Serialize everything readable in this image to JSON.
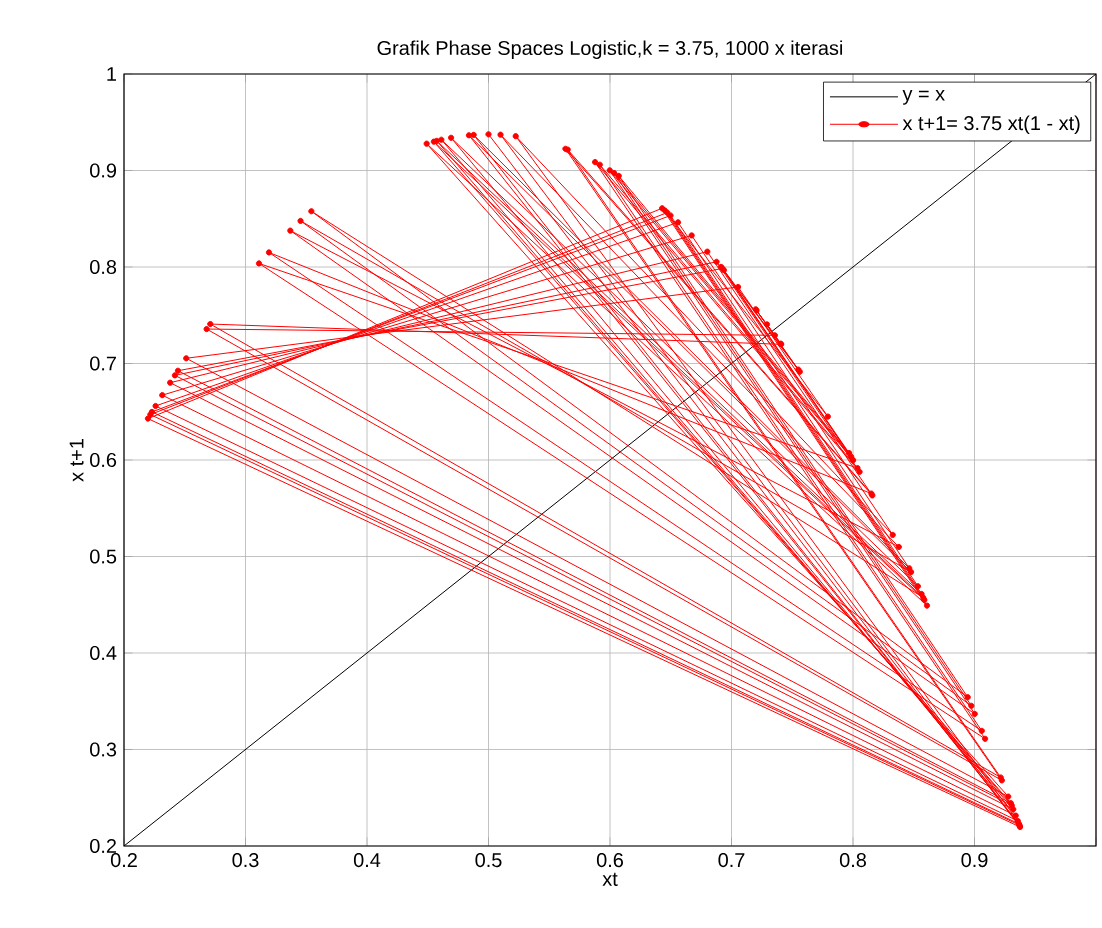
{
  "chart_data": {
    "type": "line",
    "title": "Grafik Phase Spaces Logistic,k = 3.75,  1000 x iterasi",
    "xlabel": "xt",
    "ylabel": "x t+1",
    "xlim": [
      0.2,
      1
    ],
    "ylim": [
      0.2,
      1
    ],
    "xticks": [
      0.2,
      0.3,
      0.4,
      0.5,
      0.6,
      0.7,
      0.8,
      0.9,
      {
        "value": 1,
        "label": null
      }
    ],
    "yticks": [
      0.2,
      0.3,
      0.4,
      0.5,
      0.6,
      0.7,
      0.8,
      0.9,
      1
    ],
    "grid": true,
    "legend": "top right",
    "series": [
      {
        "name": "y = x",
        "color": "#000000",
        "marker": "none",
        "x": [
          0.2,
          1
        ],
        "values": [
          0.2,
          1
        ]
      },
      {
        "name": "x t+1= 3.75 xt(1 - xt)",
        "color": "#ff0000",
        "marker": "circle",
        "x": [
          0.5,
          0.9375,
          0.2197,
          0.6429,
          0.8609,
          0.4491,
          0.9278,
          0.2512,
          0.7054,
          0.7793,
          0.645,
          0.8587,
          0.455,
          0.9299,
          0.2444,
          0.6925,
          0.7985,
          0.6034,
          0.8974,
          0.3453,
          0.8478,
          0.4839,
          0.9365,
          0.223,
          0.6498,
          0.8534,
          0.4692,
          0.9339,
          0.2315,
          0.6672,
          0.8327,
          0.5224,
          0.9356,
          0.226,
          0.656,
          0.8463,
          0.4878,
          0.9369,
          0.2217,
          0.6471,
          0.8564,
          0.4612,
          0.9319,
          0.238,
          0.6801,
          0.8159,
          0.5633,
          0.9225,
          0.268,
          0.7357,
          0.7292,
          0.7405,
          0.7206,
          0.755,
          0.6937,
          0.7968,
          0.6072,
          0.8944,
          0.3542,
          0.8578,
          0.4574,
          0.9307,
          0.2419,
          0.6877,
          0.8054,
          0.5877,
          0.9087,
          0.3111,
          0.8037,
          0.5916,
          0.906,
          0.3193,
          0.8151,
          0.5652,
          0.9216,
          0.271,
          0.7409,
          0.7199,
          0.7562,
          0.6914,
          0.8001,
          0.5998,
          0.9002,
          0.3369,
          0.8377,
          0.5099,
          0.9371
        ],
        "values": [
          0.9375,
          0.2197,
          0.6429,
          0.8609,
          0.4491,
          0.9278,
          0.2512,
          0.7054,
          0.7793,
          0.645,
          0.8587,
          0.455,
          0.9299,
          0.2444,
          0.6925,
          0.7985,
          0.6034,
          0.8974,
          0.3453,
          0.8478,
          0.4839,
          0.9365,
          0.223,
          0.6498,
          0.8534,
          0.4692,
          0.9339,
          0.2315,
          0.6672,
          0.8327,
          0.5224,
          0.9356,
          0.226,
          0.656,
          0.8463,
          0.4878,
          0.9369,
          0.2217,
          0.6471,
          0.8564,
          0.4612,
          0.9319,
          0.238,
          0.6801,
          0.8159,
          0.5633,
          0.9225,
          0.268,
          0.7357,
          0.7292,
          0.7405,
          0.7206,
          0.755,
          0.6937,
          0.7968,
          0.6072,
          0.8944,
          0.3542,
          0.8578,
          0.4574,
          0.9307,
          0.2419,
          0.6877,
          0.8054,
          0.5877,
          0.9087,
          0.3111,
          0.8037,
          0.5916,
          0.906,
          0.3193,
          0.8151,
          0.5652,
          0.9216,
          0.271,
          0.7409,
          0.7199,
          0.7562,
          0.6914,
          0.8001,
          0.5998,
          0.9002,
          0.3369,
          0.8377,
          0.5099,
          0.9371,
          0.221
        ]
      }
    ]
  }
}
